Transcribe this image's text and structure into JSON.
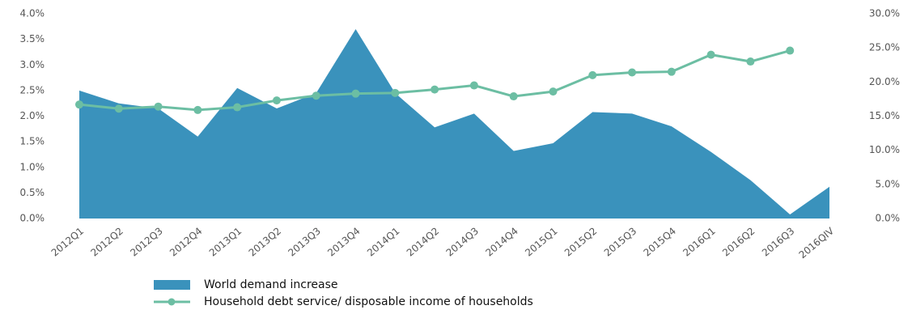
{
  "chart_data": {
    "type": "area",
    "categories": [
      "2012Q1",
      "2012Q2",
      "2012Q3",
      "2012Q4",
      "2013Q1",
      "2013Q2",
      "2013Q3",
      "2013Q4",
      "2014Q1",
      "2014Q2",
      "2014Q3",
      "2014Q4",
      "2015Q1",
      "2015Q2",
      "2015Q3",
      "2015Q4",
      "2016Q1",
      "2016Q2",
      "2016Q3",
      "2016QIV"
    ],
    "series": [
      {
        "name": "World demand increase",
        "type": "area",
        "color": "#3a92bc",
        "values": [
          2.5,
          2.25,
          2.15,
          1.6,
          2.55,
          2.15,
          2.45,
          3.7,
          2.45,
          1.78,
          2.05,
          1.32,
          1.47,
          2.08,
          2.05,
          1.8,
          1.3,
          0.75,
          0.08,
          0.62
        ]
      },
      {
        "name": "Household debt service/ disposable income of households",
        "type": "line",
        "axis": "y2",
        "color": "#6cbea3",
        "values": [
          16.7,
          16.1,
          16.4,
          15.9,
          16.3,
          17.3,
          18.0,
          18.3,
          18.4,
          18.9,
          19.5,
          17.9,
          18.6,
          21.0,
          21.4,
          21.5,
          24.0,
          23.0,
          24.6,
          null
        ]
      }
    ],
    "ylim": [
      0,
      4
    ],
    "yticks": [
      {
        "value": 0,
        "label": "0.0%"
      },
      {
        "value": 0.5,
        "label": "0.5%"
      },
      {
        "value": 1,
        "label": "1.0%"
      },
      {
        "value": 1.5,
        "label": "1.5%"
      },
      {
        "value": 2,
        "label": "2.0%"
      },
      {
        "value": 2.5,
        "label": "2.5%"
      },
      {
        "value": 3,
        "label": "3.0%"
      },
      {
        "value": 3.5,
        "label": "3.5%"
      },
      {
        "value": 4,
        "label": "4.0%"
      }
    ],
    "y2lim": [
      0,
      30
    ],
    "y2ticks": [
      {
        "value": 0,
        "label": "0.0%"
      },
      {
        "value": 5,
        "label": "5.0%"
      },
      {
        "value": 10,
        "label": "10.0%"
      },
      {
        "value": 15,
        "label": "15.0%"
      },
      {
        "value": 20,
        "label": "20.0%"
      },
      {
        "value": 25,
        "label": "25.0%"
      },
      {
        "value": 30,
        "label": "30.0%"
      }
    ],
    "grid": false,
    "legend": "bottom"
  }
}
